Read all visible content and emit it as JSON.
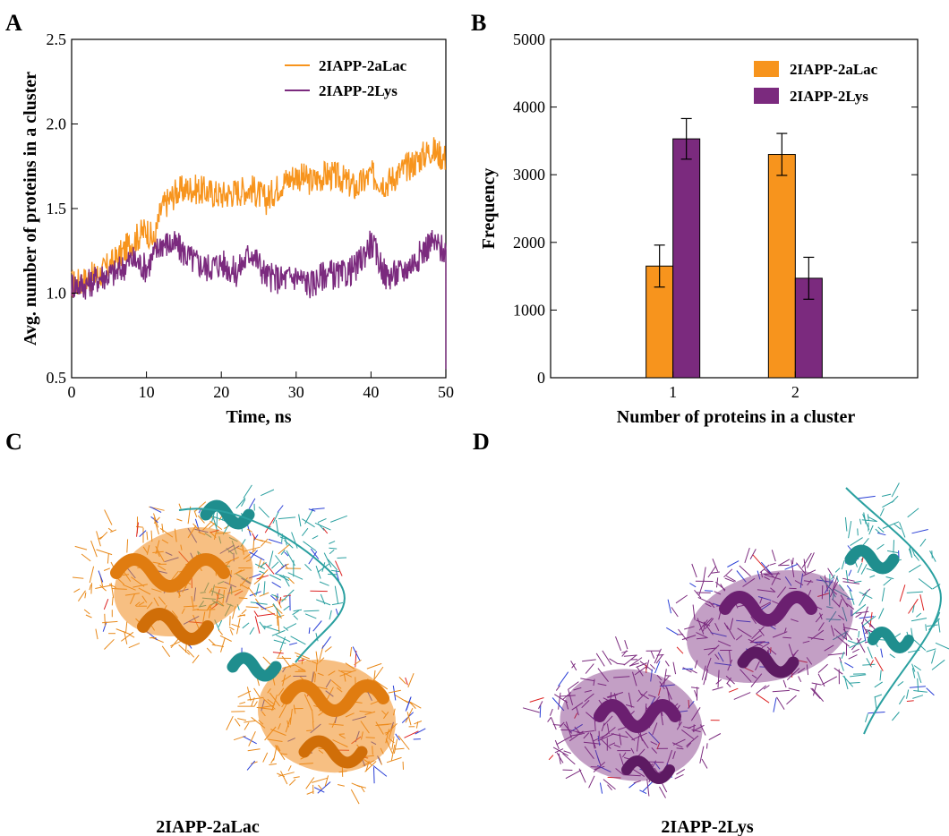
{
  "panels": {
    "a": "A",
    "b": "B",
    "c": "C",
    "d": "D"
  },
  "colors": {
    "lac": "#f7941d",
    "lys": "#7b2a7e",
    "teal": "#1f8e8e"
  },
  "chart_data": [
    {
      "type": "line",
      "xlabel": "Time, ns",
      "ylabel": "Avg. number of proteins in a cluster",
      "xlim": [
        0,
        50
      ],
      "ylim": [
        0.5,
        2.5
      ],
      "xticks": [
        "0",
        "10",
        "20",
        "30",
        "40",
        "50"
      ],
      "yticks": [
        "0.5",
        "1.0",
        "1.5",
        "2.0",
        "2.5"
      ],
      "legend_position": "top-right",
      "series": [
        {
          "name": "2IAPP-2aLac",
          "color": "#f7941d",
          "x": [
            0,
            2,
            4,
            6,
            8,
            10,
            11,
            12,
            14,
            16,
            18,
            20,
            22,
            24,
            26,
            28,
            30,
            32,
            34,
            36,
            38,
            40,
            42,
            44,
            46,
            48,
            50
          ],
          "y": [
            1.05,
            1.08,
            1.12,
            1.2,
            1.3,
            1.38,
            1.3,
            1.5,
            1.6,
            1.62,
            1.6,
            1.58,
            1.6,
            1.62,
            1.55,
            1.65,
            1.7,
            1.66,
            1.7,
            1.68,
            1.62,
            1.7,
            1.65,
            1.72,
            1.78,
            1.85,
            1.8
          ]
        },
        {
          "name": "2IAPP-2Lys",
          "color": "#7b2a7e",
          "x": [
            0,
            2,
            4,
            6,
            8,
            10,
            12,
            14,
            16,
            18,
            20,
            22,
            24,
            26,
            28,
            30,
            32,
            34,
            36,
            38,
            40,
            42,
            44,
            46,
            48,
            50
          ],
          "y": [
            1.05,
            1.05,
            1.1,
            1.12,
            1.2,
            1.15,
            1.3,
            1.28,
            1.2,
            1.15,
            1.18,
            1.12,
            1.25,
            1.1,
            1.08,
            1.1,
            1.05,
            1.12,
            1.1,
            1.15,
            1.3,
            1.1,
            1.12,
            1.2,
            1.3,
            1.25
          ]
        }
      ]
    },
    {
      "type": "bar",
      "xlabel": "Number of proteins in a cluster",
      "ylabel": "Frequency",
      "categories": [
        "1",
        "2"
      ],
      "ylim": [
        0,
        5000
      ],
      "yticks": [
        "0",
        "1000",
        "2000",
        "3000",
        "4000",
        "5000"
      ],
      "legend_position": "top-right",
      "series": [
        {
          "name": "2IAPP-2aLac",
          "color": "#f7941d",
          "values": [
            1650,
            3300
          ],
          "errors": [
            310,
            310
          ]
        },
        {
          "name": "2IAPP-2Lys",
          "color": "#7b2a7e",
          "values": [
            3530,
            1470
          ],
          "errors": [
            300,
            310
          ]
        }
      ]
    }
  ],
  "structures": {
    "c_label": "2IAPP-2aLac",
    "d_label": "2IAPP-2Lys"
  }
}
